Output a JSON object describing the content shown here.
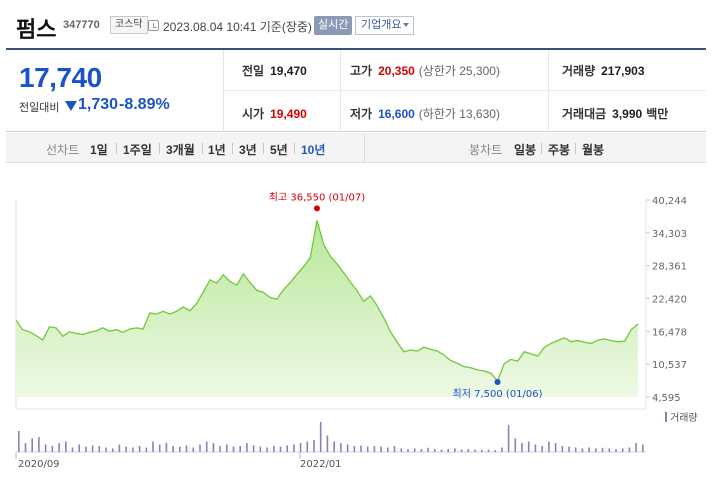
{
  "header": {
    "name": "펌스",
    "code": "347770",
    "market": "코스닥",
    "datetime": "2023.08.04 10:41 기준(장중)",
    "realtime_label": "실시간",
    "overview_label": "기업개요"
  },
  "quote": {
    "price": "17,740",
    "change_label": "전일대비",
    "change": "1,730",
    "change_rate": "-8.89%",
    "prev_close_label": "전일",
    "prev_close": "19,470",
    "high_label": "고가",
    "high": "20,350",
    "upper_limit": "(상한가 25,300)",
    "volume_label": "거래량",
    "volume": "217,903",
    "open_label": "시가",
    "open": "19,490",
    "low_label": "저가",
    "low": "16,600",
    "lower_limit": "(하한가 13,630)",
    "trade_value_label": "거래대금",
    "trade_value": "3,990",
    "trade_value_unit": "백만"
  },
  "toolbar": {
    "line_chart_label": "선차트",
    "periods": [
      "1일",
      "1주일",
      "3개월",
      "1년",
      "3년",
      "5년",
      "10년"
    ],
    "selected_period": "10년",
    "candle_chart_label": "봉차트",
    "candles": [
      "일봉",
      "주봉",
      "월봉"
    ]
  },
  "colors": {
    "up": "#d60000",
    "down": "#1a53c8",
    "line": "#72c83a",
    "area": "#c9eeae",
    "volume": "#8d80b8"
  },
  "chart_data": {
    "type": "area",
    "y_ticks": [
      "40,244",
      "34,303",
      "28,361",
      "22,420",
      "16,478",
      "10,537",
      "4,595"
    ],
    "ylim": [
      4595,
      40244
    ],
    "x_labels": [
      "2020/09",
      "2022/01"
    ],
    "max_annotation": "최고 36,550 (01/07)",
    "min_annotation": "최저 7,500 (01/06)",
    "volume_legend": "거래량",
    "series": [
      {
        "values": [
          18500,
          16800,
          16400,
          15700,
          14900,
          17300,
          17100,
          15600,
          16400,
          16100,
          15900,
          16300,
          16600,
          17100,
          16500,
          16800,
          16300,
          16900,
          17100,
          16900,
          19800,
          19600,
          20100,
          19600,
          20100,
          20900,
          20200,
          21500,
          23600,
          25800,
          25200,
          26700,
          25500,
          24800,
          26900,
          25300,
          23900,
          23500,
          22600,
          22300,
          24000,
          25300,
          26800,
          28200,
          29800,
          36550,
          32200,
          30100,
          28700,
          27100,
          25400,
          23800,
          21900,
          22900,
          21100,
          18900,
          16400,
          14500,
          12800,
          13100,
          12900,
          13600,
          13200,
          12900,
          12200,
          11200,
          10700,
          10100,
          9900,
          9500,
          9300,
          8900,
          7500,
          10600,
          11400,
          11100,
          12800,
          12400,
          12000,
          13600,
          14300,
          14800,
          15300,
          14600,
          14800,
          14500,
          14300,
          14900,
          15100,
          14800,
          14600,
          14700,
          16800,
          17800
        ]
      }
    ],
    "volume": [
      0.7,
      0.3,
      0.45,
      0.5,
      0.25,
      0.2,
      0.3,
      0.35,
      0.15,
      0.25,
      0.18,
      0.22,
      0.2,
      0.15,
      0.12,
      0.25,
      0.18,
      0.15,
      0.2,
      0.15,
      0.35,
      0.25,
      0.3,
      0.2,
      0.18,
      0.22,
      0.15,
      0.25,
      0.35,
      0.3,
      0.2,
      0.25,
      0.18,
      0.2,
      0.3,
      0.22,
      0.18,
      0.15,
      0.2,
      0.18,
      0.22,
      0.25,
      0.3,
      0.35,
      0.4,
      1.0,
      0.55,
      0.35,
      0.3,
      0.25,
      0.2,
      0.22,
      0.18,
      0.2,
      0.18,
      0.15,
      0.2,
      0.12,
      0.1,
      0.12,
      0.1,
      0.14,
      0.1,
      0.08,
      0.1,
      0.12,
      0.08,
      0.1,
      0.08,
      0.07,
      0.08,
      0.06,
      0.15,
      0.9,
      0.45,
      0.3,
      0.35,
      0.25,
      0.2,
      0.35,
      0.3,
      0.2,
      0.18,
      0.15,
      0.12,
      0.15,
      0.12,
      0.14,
      0.12,
      0.1,
      0.12,
      0.15,
      0.3,
      0.25
    ]
  }
}
